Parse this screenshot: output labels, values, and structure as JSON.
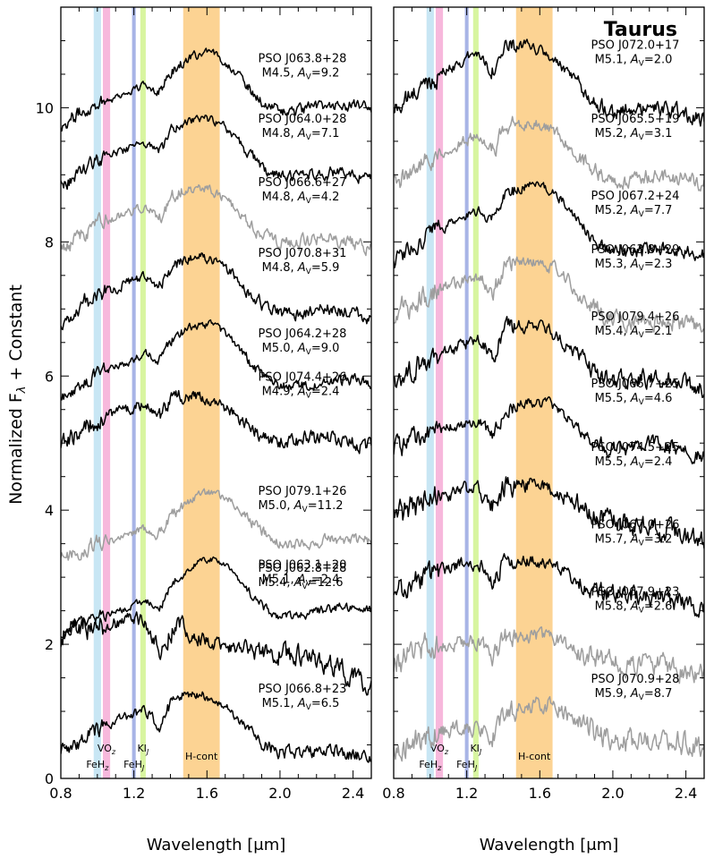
{
  "figure": {
    "ylabel_text": "Normalized F",
    "ylabel_sub": "λ",
    "ylabel_suffix": " + Constant"
  },
  "chart_data": [
    {
      "type": "line",
      "title": "",
      "xlabel": "Wavelength [μm]",
      "ylabel": "Normalized Fλ + Constant",
      "xlim": [
        0.8,
        2.5
      ],
      "ylim": [
        0,
        11.5
      ],
      "xticks": [
        "0.8",
        "1.2",
        "1.6",
        "2.0",
        "2.4"
      ],
      "yticks": [
        "0",
        "2",
        "4",
        "6",
        "8",
        "10"
      ],
      "bands": [
        {
          "label": "FeH_z",
          "range": [
            0.98,
            1.02
          ],
          "color": "#c8e6f4",
          "base": "FeH",
          "sub": "z",
          "row": "low"
        },
        {
          "label": "VO_z",
          "range": [
            1.03,
            1.07
          ],
          "color": "#f7b8dc",
          "base": "VO",
          "sub": "z",
          "row": "high"
        },
        {
          "label": "FeH_J",
          "range": [
            1.19,
            1.21
          ],
          "color": "#a8b4e6",
          "base": "FeH",
          "sub": "J",
          "row": "low"
        },
        {
          "label": "KI_J",
          "range": [
            1.235,
            1.265
          ],
          "color": "#d8f5a0",
          "base": "KI",
          "sub": "J",
          "row": "high"
        },
        {
          "label": "H-cont",
          "range": [
            1.47,
            1.67
          ],
          "color": "#fcd393",
          "base": "H-cont",
          "sub": "",
          "row": "mid"
        }
      ],
      "series": [
        {
          "name": "PSO J063.8+28",
          "spt": "M4.5",
          "av": "9.2",
          "color": "#000000",
          "baseline": 9.8,
          "peakJ": 0.55,
          "peakH": 0.78,
          "kDrop": 0.18,
          "tail": 0.22,
          "noise": 0.05
        },
        {
          "name": "PSO J064.0+28",
          "spt": "M4.8",
          "av": "7.1",
          "color": "#000000",
          "baseline": 8.9,
          "peakJ": 0.62,
          "peakH": 0.68,
          "kDrop": 0.25,
          "tail": 0.08,
          "noise": 0.05
        },
        {
          "name": "PSO J066.6+27",
          "spt": "M4.8",
          "av": "4.2",
          "color": "#9e9e9e",
          "baseline": 7.95,
          "peakJ": 0.62,
          "peakH": 0.58,
          "kDrop": 0.28,
          "tail": 0.0,
          "noise": 0.06
        },
        {
          "name": "PSO J070.8+31",
          "spt": "M4.8",
          "av": "5.9",
          "color": "#000000",
          "baseline": 6.9,
          "peakJ": 0.62,
          "peakH": 0.6,
          "kDrop": 0.25,
          "tail": 0.0,
          "noise": 0.06
        },
        {
          "name": "PSO J064.2+28",
          "spt": "M5.0",
          "av": "9.0",
          "color": "#000000",
          "baseline": 5.7,
          "peakJ": 0.65,
          "peakH": 0.8,
          "kDrop": 0.22,
          "tail": 0.22,
          "noise": 0.05
        },
        {
          "name": "PSO J074.4+26",
          "spt": "M4.9",
          "av": "2.4",
          "color": "#000000",
          "baseline": 5.05,
          "peakJ": 0.6,
          "peakH": 0.35,
          "kDrop": 0.3,
          "tail": -0.08,
          "noise": 0.07
        },
        {
          "name": "PSO J079.1+26",
          "spt": "M5.0",
          "av": "11.2",
          "color": "#9e9e9e",
          "baseline": 3.35,
          "peakJ": 0.35,
          "peakH": 0.78,
          "kDrop": 0.2,
          "tail": 0.22,
          "noise": 0.05
        },
        {
          "name": "PSO J062.8+28",
          "spt": "M5.4",
          "av": "12.6",
          "color": "#000000",
          "baseline": 2.2,
          "peakJ": 0.45,
          "peakH": 0.88,
          "kDrop": 0.2,
          "tail": 0.35,
          "noise": 0.04
        },
        {
          "name": "PSO J063.1+20",
          "spt": "M5.1",
          "av": "2.4",
          "color": "#000000",
          "baseline": 2.25,
          "peakJ": 0.15,
          "peakH": -0.3,
          "kDrop": 0.35,
          "tail": -0.85,
          "noise": 0.09
        },
        {
          "name": "PSO J066.8+23",
          "spt": "M5.1",
          "av": "6.5",
          "color": "#000000",
          "baseline": 0.4,
          "peakJ": 0.65,
          "peakH": 0.55,
          "kDrop": 0.3,
          "tail": -0.1,
          "noise": 0.06
        }
      ]
    },
    {
      "type": "line",
      "title": "Taurus",
      "xlabel": "Wavelength [μm]",
      "ylabel": "",
      "xlim": [
        0.8,
        2.5
      ],
      "ylim": [
        0,
        11.5
      ],
      "xticks": [
        "0.8",
        "1.2",
        "1.6",
        "2.0",
        "2.4"
      ],
      "yticks": [],
      "bands": [
        {
          "label": "FeH_z",
          "range": [
            0.98,
            1.02
          ],
          "color": "#c8e6f4",
          "base": "FeH",
          "sub": "z",
          "row": "low"
        },
        {
          "label": "VO_z",
          "range": [
            1.03,
            1.07
          ],
          "color": "#f7b8dc",
          "base": "VO",
          "sub": "z",
          "row": "high"
        },
        {
          "label": "FeH_J",
          "range": [
            1.19,
            1.21
          ],
          "color": "#a8b4e6",
          "base": "FeH",
          "sub": "J",
          "row": "low"
        },
        {
          "label": "KI_J",
          "range": [
            1.235,
            1.265
          ],
          "color": "#d8f5a0",
          "base": "KI",
          "sub": "J",
          "row": "high"
        },
        {
          "label": "H-cont",
          "range": [
            1.47,
            1.67
          ],
          "color": "#fcd393",
          "base": "H-cont",
          "sub": "",
          "row": "mid"
        }
      ],
      "series": [
        {
          "name": "PSO J072.0+17",
          "spt": "M5.1",
          "av": "2.0",
          "color": "#000000",
          "baseline": 10.0,
          "peakJ": 0.85,
          "peakH": 0.5,
          "kDrop": 0.3,
          "tail": -0.15,
          "noise": 0.07
        },
        {
          "name": "PSO J065.5+19",
          "spt": "M5.2",
          "av": "3.1",
          "color": "#9e9e9e",
          "baseline": 8.9,
          "peakJ": 0.72,
          "peakH": 0.55,
          "kDrop": 0.3,
          "tail": 0.0,
          "noise": 0.07
        },
        {
          "name": "PSO J067.2+24",
          "spt": "M5.2",
          "av": "7.7",
          "color": "#000000",
          "baseline": 7.75,
          "peakJ": 0.75,
          "peakH": 0.8,
          "kDrop": 0.28,
          "tail": 0.1,
          "noise": 0.06
        },
        {
          "name": "PSO J063.8+29",
          "spt": "M5.3",
          "av": "2.3",
          "color": "#9e9e9e",
          "baseline": 6.95,
          "peakJ": 0.6,
          "peakH": 0.5,
          "kDrop": 0.3,
          "tail": -0.25,
          "noise": 0.08
        },
        {
          "name": "PSO J079.4+26",
          "spt": "M5.4",
          "av": "2.1",
          "color": "#000000",
          "baseline": 5.95,
          "peakJ": 0.65,
          "peakH": 0.5,
          "kDrop": 0.3,
          "tail": -0.1,
          "noise": 0.08
        },
        {
          "name": "PSO J066.7+25",
          "spt": "M5.5",
          "av": "4.6",
          "color": "#000000",
          "baseline": 4.95,
          "peakJ": 0.45,
          "peakH": 0.45,
          "kDrop": 0.3,
          "tail": -0.1,
          "noise": 0.07
        },
        {
          "name": "PSO J074.5+25",
          "spt": "M5.5",
          "av": "2.4",
          "color": "#000000",
          "baseline": 4.0,
          "peakJ": 0.35,
          "peakH": 0.2,
          "kDrop": 0.3,
          "tail": -0.45,
          "noise": 0.09
        },
        {
          "name": "PSO J067.0+26",
          "spt": "M5.7",
          "av": "3.2",
          "color": "#000000",
          "baseline": 2.85,
          "peakJ": 0.4,
          "peakH": 0.2,
          "kDrop": 0.3,
          "tail": -0.3,
          "noise": 0.08
        },
        {
          "name": "PSO J067.9+23",
          "spt": "M5.8",
          "av": "2.6",
          "color": "#9e9e9e",
          "baseline": 1.85,
          "peakJ": 0.25,
          "peakH": 0.15,
          "kDrop": 0.3,
          "tail": -0.3,
          "noise": 0.09
        },
        {
          "name": "PSO J070.9+28",
          "spt": "M5.9",
          "av": "8.7",
          "color": "#9e9e9e",
          "baseline": 0.55,
          "peakJ": 0.25,
          "peakH": 0.45,
          "kDrop": 0.25,
          "tail": -0.05,
          "noise": 0.1
        }
      ]
    }
  ]
}
